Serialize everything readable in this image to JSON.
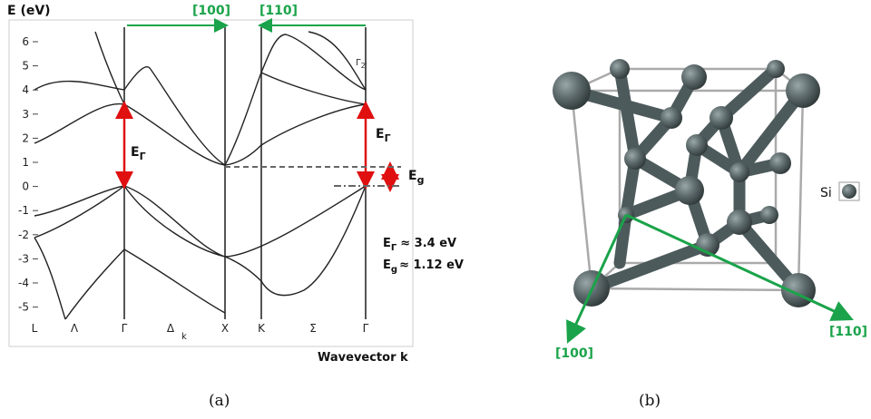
{
  "panel_a": {
    "y_axis_label": "E (eV)",
    "yticks": [
      -5,
      -4,
      -3,
      -2,
      -1,
      0,
      1,
      2,
      3,
      4,
      5,
      6
    ],
    "k_labels": [
      "L",
      "Λ",
      "Γ",
      "Δ",
      "X",
      "K",
      "Σ",
      "Γ"
    ],
    "delta_subscript": "k",
    "x_axis_label": "Wavevector k",
    "direction_labels": [
      "[100]",
      "[110]"
    ],
    "gap_labels": [
      {
        "main": "E",
        "sub": "Γ"
      },
      {
        "main": "E",
        "sub": "Γ"
      },
      {
        "main": "E",
        "sub": "g"
      }
    ],
    "band_label": {
      "main": "Γ",
      "sub": "2'"
    },
    "equations": [
      {
        "main": "E",
        "sub": "Γ",
        "rest": "≈ 3.4 eV"
      },
      {
        "main": "E",
        "sub": "g",
        "rest": "≈ 1.12 eV"
      }
    ],
    "caption": "(a)"
  },
  "panel_b": {
    "direction_labels": [
      "[100]",
      "[110]"
    ],
    "legend": "Si",
    "caption": "(b)"
  }
}
